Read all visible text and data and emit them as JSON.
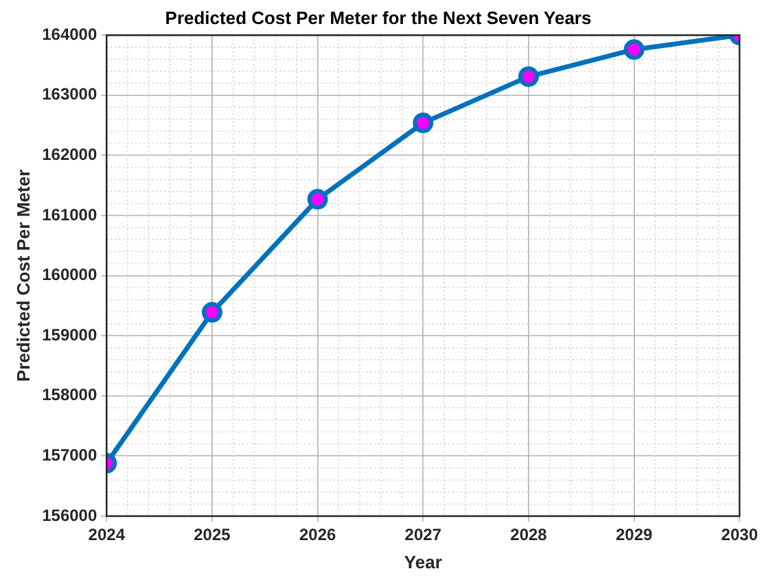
{
  "chart_data": {
    "type": "line",
    "title": "Predicted Cost Per Meter for the Next Seven Years",
    "xlabel": "Year",
    "ylabel": "Predicted Cost Per Meter",
    "x": [
      2024,
      2025,
      2026,
      2027,
      2028,
      2029,
      2030
    ],
    "series": [
      {
        "color": "#0072bd",
        "values": [
          156880,
          159390,
          161270,
          162540,
          163310,
          163760,
          164000
        ]
      }
    ],
    "xlim": [
      2024,
      2030
    ],
    "xticks": [
      2024,
      2025,
      2026,
      2027,
      2028,
      2029,
      2030
    ],
    "ylim": [
      156000,
      164000
    ],
    "yticks": [
      156000,
      157000,
      158000,
      159000,
      160000,
      161000,
      162000,
      163000,
      164000
    ],
    "grid": true,
    "legend": false,
    "marker": "circle",
    "line_style": "solid"
  }
}
